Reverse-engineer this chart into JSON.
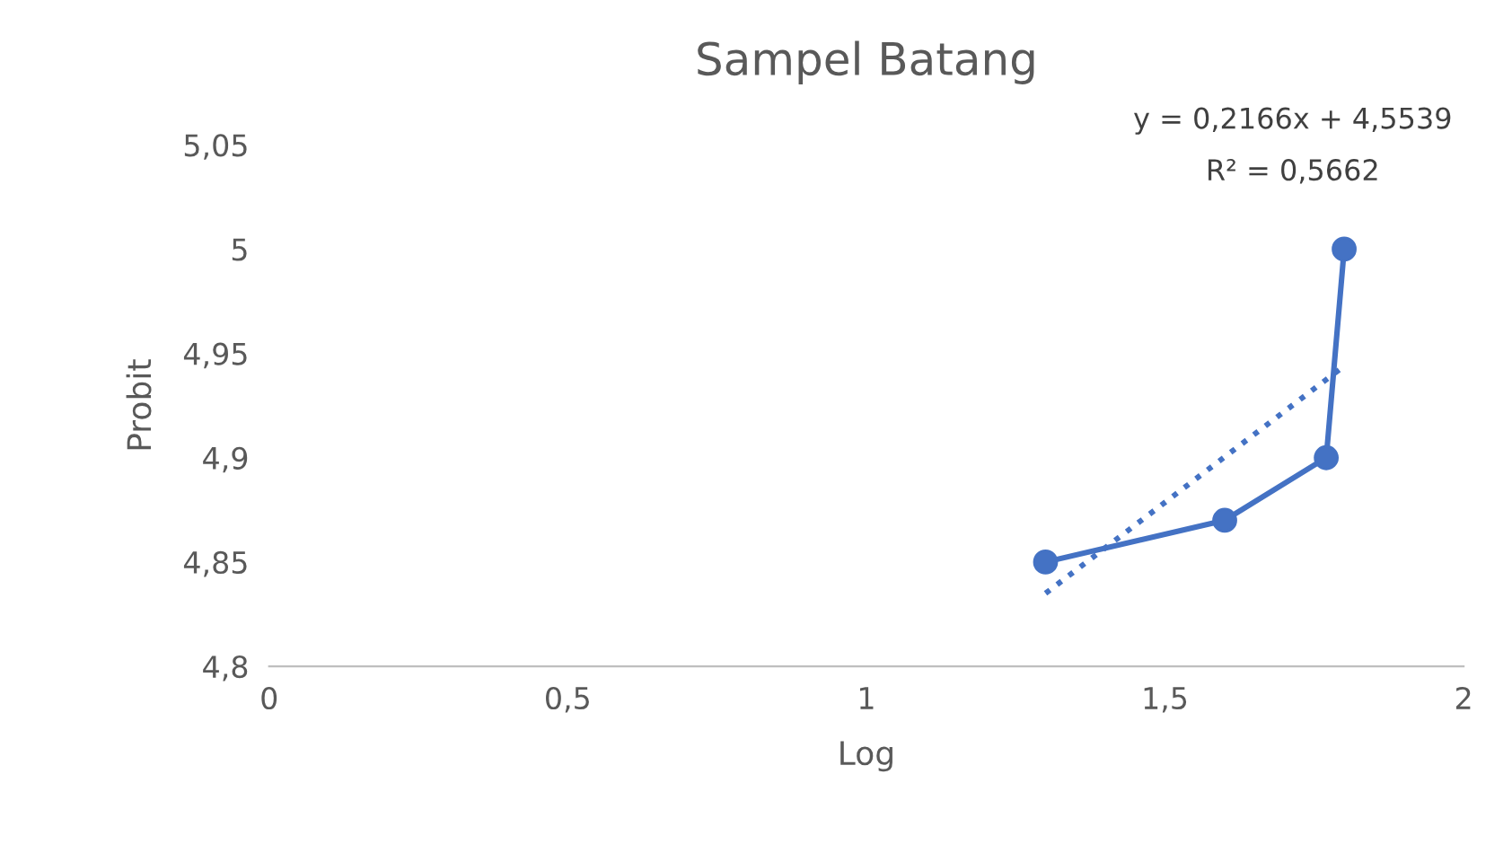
{
  "chart_data": {
    "type": "line",
    "title": "Sampel Batang",
    "xlabel": "Log",
    "ylabel": "Probit",
    "xlim": [
      0,
      2
    ],
    "xticks": [
      0,
      {
        "value": 0.5,
        "label": "0,5"
      },
      1,
      {
        "value": 1.5,
        "label": "1,5"
      },
      2
    ],
    "ylim": [
      4.8,
      5.05
    ],
    "yticks": [
      {
        "value": 4.8,
        "label": "4,8"
      },
      {
        "value": 4.85,
        "label": "4,85"
      },
      {
        "value": 4.9,
        "label": "4,9"
      },
      {
        "value": 4.95,
        "label": "4,95"
      },
      {
        "value": 5,
        "label": "5"
      },
      {
        "value": 5.05,
        "label": "5,05"
      }
    ],
    "grid": false,
    "legend": false,
    "series": [
      {
        "type": "line",
        "color": "#4472c4",
        "marker": "circle",
        "line_style": "solid",
        "x": [
          1.3,
          1.6,
          1.77,
          1.8
        ],
        "values": [
          4.85,
          4.87,
          4.9,
          5.0
        ]
      },
      {
        "type": "line",
        "color": "#4472c4",
        "marker": "none",
        "line_style": "dotted",
        "x": [
          1.3,
          1.8
        ],
        "values": [
          4.835,
          4.944
        ]
      }
    ],
    "annotations": [
      "y = 0,2166x + 4,5539",
      "R² = 0,5662"
    ]
  }
}
